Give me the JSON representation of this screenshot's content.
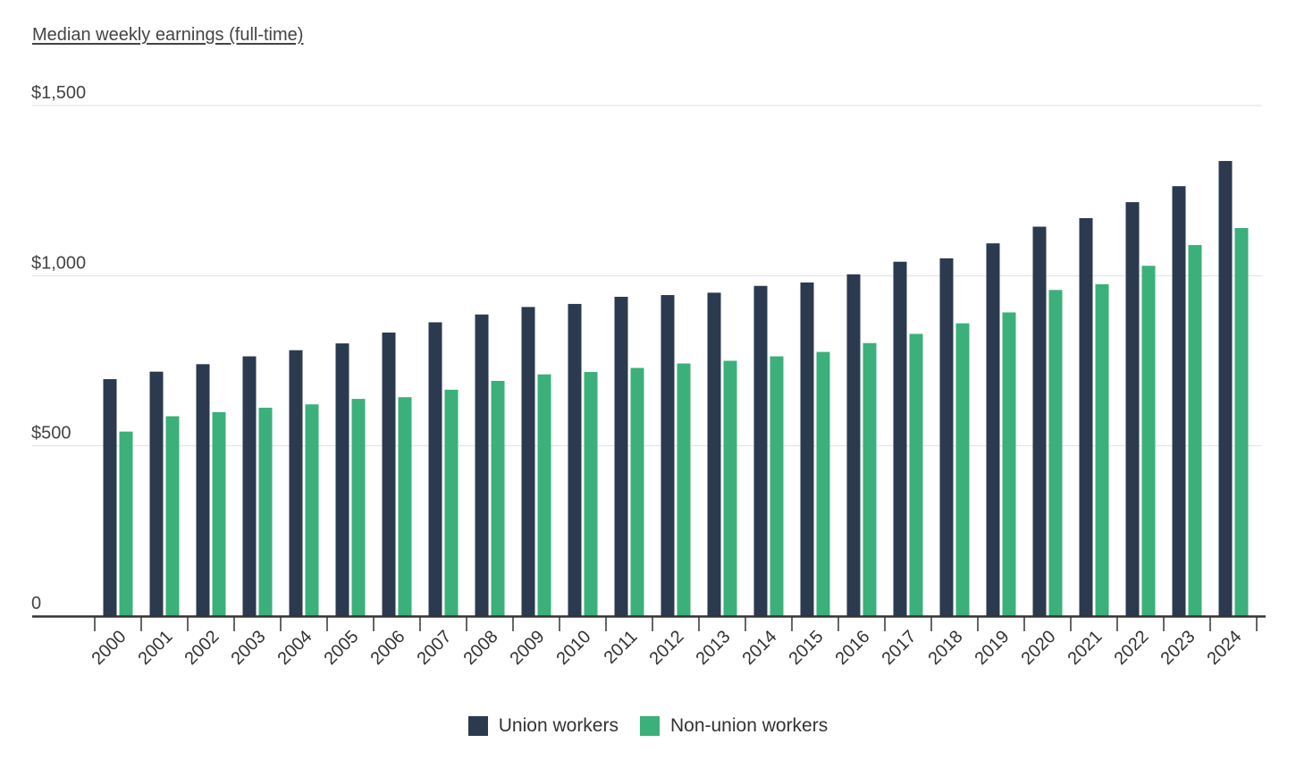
{
  "chart_data": {
    "type": "bar",
    "ylabel": "Median weekly earnings (full-time)",
    "ylim": [
      0,
      1500
    ],
    "yticks": [
      {
        "value": 0,
        "label": "0"
      },
      {
        "value": 500,
        "label": "$500"
      },
      {
        "value": 1000,
        "label": "$1,000"
      },
      {
        "value": 1500,
        "label": "$1,500"
      }
    ],
    "grid": true,
    "legend_position": "bottom",
    "categories": [
      "2000",
      "2001",
      "2002",
      "2003",
      "2004",
      "2005",
      "2006",
      "2007",
      "2008",
      "2009",
      "2010",
      "2011",
      "2012",
      "2013",
      "2014",
      "2015",
      "2016",
      "2017",
      "2018",
      "2019",
      "2020",
      "2021",
      "2022",
      "2023",
      "2024"
    ],
    "series": [
      {
        "name": "Union workers",
        "color": "#2b3a4e",
        "values": [
          696,
          718,
          740,
          763,
          781,
          801,
          833,
          863,
          886,
          908,
          917,
          938,
          943,
          950,
          970,
          980,
          1004,
          1041,
          1051,
          1095,
          1144,
          1169,
          1216,
          1263,
          1337
        ]
      },
      {
        "name": "Non-union workers",
        "color": "#3bb07a",
        "values": [
          542,
          587,
          599,
          612,
          622,
          638,
          643,
          665,
          691,
          710,
          717,
          729,
          742,
          750,
          763,
          776,
          802,
          829,
          860,
          892,
          958,
          975,
          1029,
          1090,
          1140
        ]
      }
    ]
  }
}
